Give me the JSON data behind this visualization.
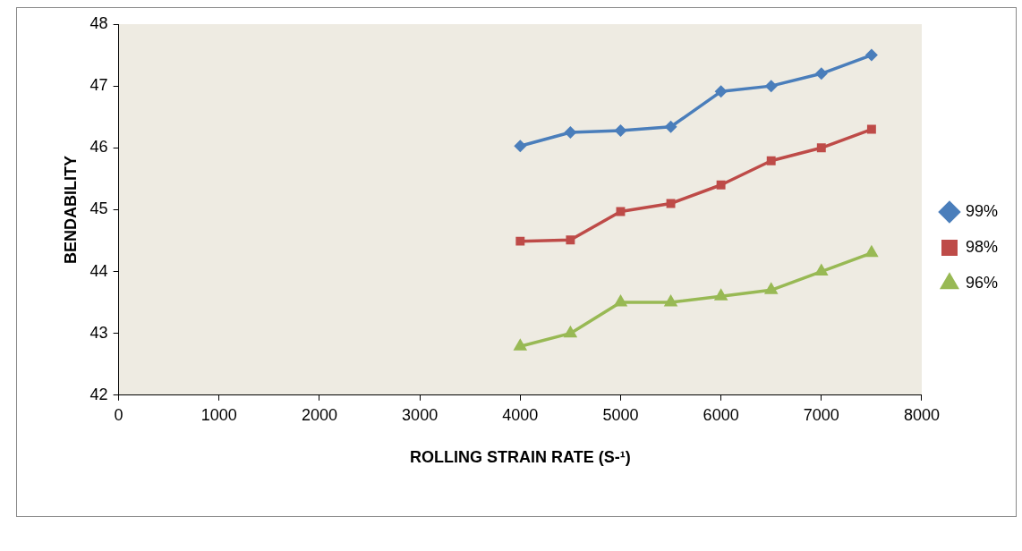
{
  "chart_data": {
    "type": "line",
    "xlabel": "ROLLING STRAIN RATE (S-¹)",
    "ylabel": "BENDABILITY",
    "x": [
      4000,
      4500,
      5000,
      5500,
      6000,
      6500,
      7000,
      7500
    ],
    "series": [
      {
        "name": "99%",
        "color": "#4a7ebb",
        "marker": "diamond",
        "values": [
          46.03,
          46.25,
          46.28,
          46.34,
          46.91,
          47.0,
          47.2,
          47.5
        ]
      },
      {
        "name": "98%",
        "color": "#be4b48",
        "marker": "square",
        "values": [
          44.49,
          44.51,
          44.97,
          45.1,
          45.4,
          45.79,
          46.0,
          46.3
        ]
      },
      {
        "name": "96%",
        "color": "#98b954",
        "marker": "triangle",
        "values": [
          42.79,
          43.0,
          43.5,
          43.5,
          43.6,
          43.7,
          44.0,
          44.3
        ]
      }
    ],
    "xlim": [
      0,
      8000
    ],
    "xticks": [
      0,
      1000,
      2000,
      3000,
      4000,
      5000,
      6000,
      7000,
      8000
    ],
    "ylim": [
      42,
      48
    ],
    "yticks": [
      42,
      43,
      44,
      45,
      46,
      47,
      48
    ],
    "grid": false,
    "legend": "right",
    "line_style": "solid"
  }
}
